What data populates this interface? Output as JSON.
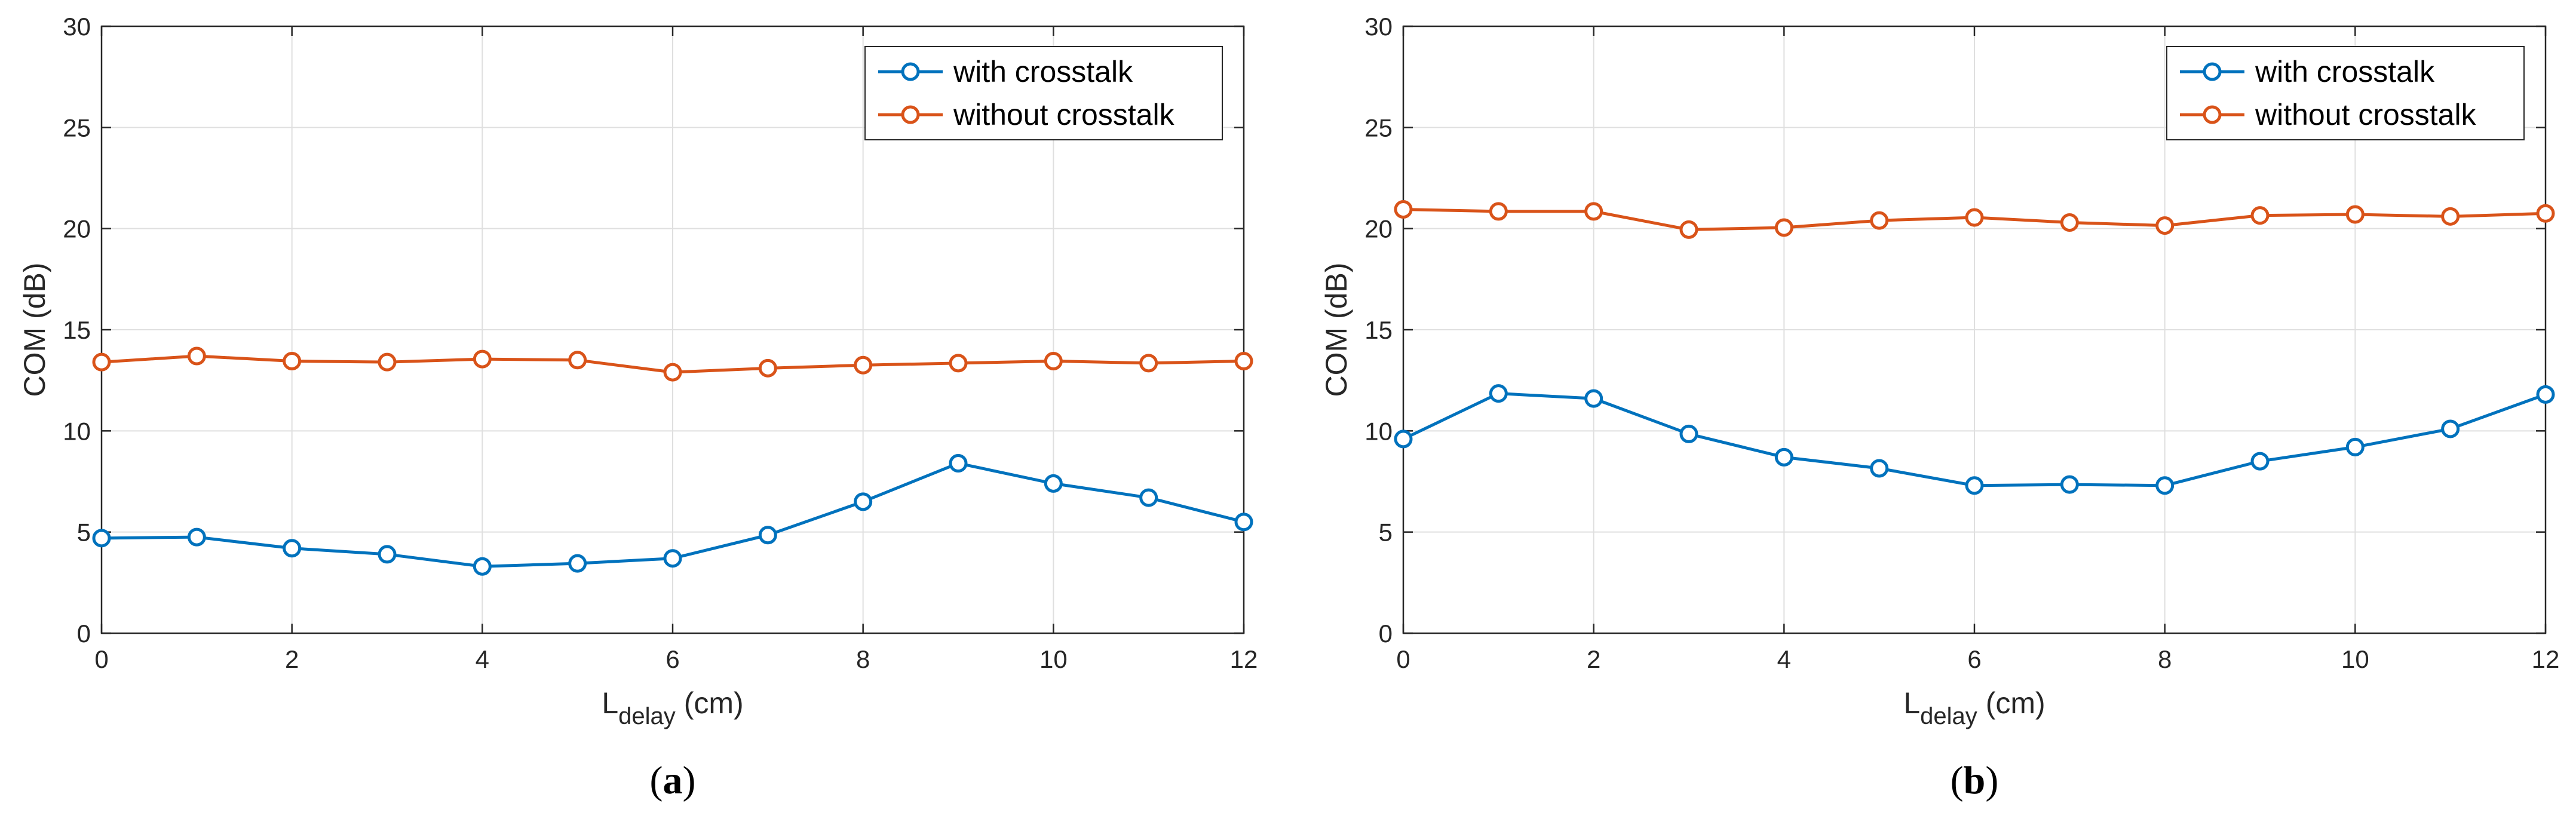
{
  "colors": {
    "with_crosstalk": "#0072BD",
    "without_crosstalk": "#D95319",
    "grid": "#DFDFDF",
    "axis": "#262626"
  },
  "chart_data": [
    {
      "type": "line",
      "panel_label": "a",
      "xlabel_main": "L",
      "xlabel_sub": "delay",
      "xlabel_unit": " (cm)",
      "ylabel": "COM (dB)",
      "xlim": [
        0,
        12
      ],
      "ylim": [
        0,
        30
      ],
      "xticks": [
        0,
        2,
        4,
        6,
        8,
        10,
        12
      ],
      "yticks": [
        0,
        5,
        10,
        15,
        20,
        25,
        30
      ],
      "grid": true,
      "legend_position": "top-right",
      "x": [
        0,
        1,
        2,
        3,
        4,
        5,
        6,
        7,
        8,
        9,
        10,
        11,
        12
      ],
      "series": [
        {
          "name": "with crosstalk",
          "color_key": "with_crosstalk",
          "values": [
            4.7,
            4.75,
            4.2,
            3.9,
            3.3,
            3.45,
            3.7,
            4.85,
            6.5,
            8.4,
            7.4,
            6.7,
            5.5
          ]
        },
        {
          "name": "without crosstalk",
          "color_key": "without_crosstalk",
          "values": [
            13.4,
            13.7,
            13.45,
            13.4,
            13.55,
            13.5,
            12.9,
            13.1,
            13.25,
            13.35,
            13.45,
            13.35,
            13.45
          ]
        }
      ]
    },
    {
      "type": "line",
      "panel_label": "b",
      "xlabel_main": "L",
      "xlabel_sub": "delay",
      "xlabel_unit": " (cm)",
      "ylabel": "COM (dB)",
      "xlim": [
        0,
        12
      ],
      "ylim": [
        0,
        30
      ],
      "xticks": [
        0,
        2,
        4,
        6,
        8,
        10,
        12
      ],
      "yticks": [
        0,
        5,
        10,
        15,
        20,
        25,
        30
      ],
      "grid": true,
      "legend_position": "top-right",
      "x": [
        0,
        1,
        2,
        3,
        4,
        5,
        6,
        7,
        8,
        9,
        10,
        11,
        12
      ],
      "series": [
        {
          "name": "with crosstalk",
          "color_key": "with_crosstalk",
          "values": [
            9.6,
            11.85,
            11.6,
            9.85,
            8.7,
            8.15,
            7.3,
            7.35,
            7.3,
            8.5,
            9.2,
            10.1,
            11.8
          ]
        },
        {
          "name": "without crosstalk",
          "color_key": "without_crosstalk",
          "values": [
            20.95,
            20.85,
            20.85,
            19.95,
            20.05,
            20.4,
            20.55,
            20.3,
            20.15,
            20.65,
            20.7,
            20.6,
            20.75
          ]
        }
      ]
    }
  ]
}
